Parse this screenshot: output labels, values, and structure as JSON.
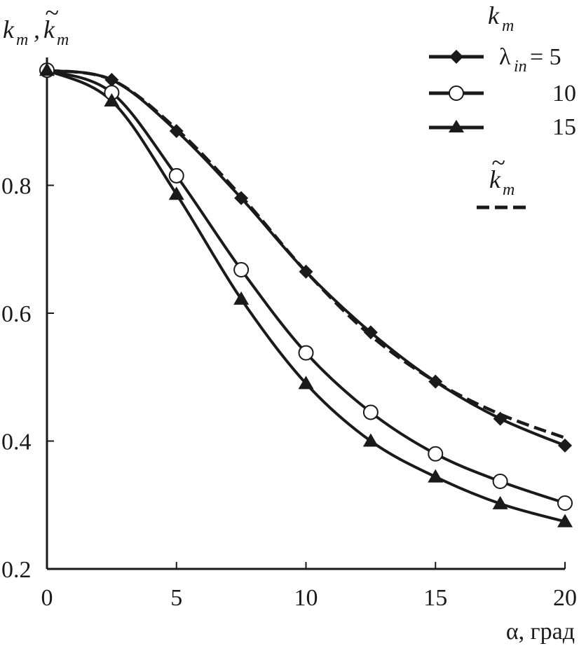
{
  "chart_data": {
    "type": "line",
    "title": "",
    "ylabel_main": "k",
    "ylabel_sub": "m",
    "ylabel_sep": ",",
    "ylabel2_main": "k",
    "ylabel2_tilde": "~",
    "ylabel2_sub": "m",
    "xlabel": "α, град",
    "xlim": [
      0,
      20
    ],
    "ylim": [
      0.2,
      1.0
    ],
    "xticks": [
      0,
      5,
      10,
      15,
      20
    ],
    "yticks": [
      0.2,
      0.4,
      0.6,
      0.8
    ],
    "ytick_labels": [
      "0.2",
      "0.4",
      "0.6",
      "0.8"
    ],
    "xtick_labels": [
      "0",
      "5",
      "10",
      "15",
      "20"
    ],
    "legend": {
      "title_main": "k",
      "title_sub": "m",
      "lambda_symbol": "λ",
      "lambda_sub": "in",
      "lambda_eq": " = 5",
      "entries": [
        "10",
        "15"
      ],
      "dashed_main": "k",
      "dashed_tilde": "~",
      "dashed_sub": "m"
    },
    "series": [
      {
        "name": "λin = 5",
        "marker": "diamond",
        "x": [
          0,
          2.5,
          5,
          7.5,
          10,
          12.5,
          15,
          17.5,
          20
        ],
        "y": [
          0.98,
          0.965,
          0.885,
          0.78,
          0.665,
          0.57,
          0.493,
          0.435,
          0.393
        ]
      },
      {
        "name": "10",
        "marker": "circle",
        "x": [
          0,
          2.5,
          5,
          7.5,
          10,
          12.5,
          15,
          17.5,
          20
        ],
        "y": [
          0.98,
          0.945,
          0.815,
          0.668,
          0.538,
          0.445,
          0.38,
          0.337,
          0.303
        ]
      },
      {
        "name": "15",
        "marker": "triangle",
        "x": [
          0,
          2.5,
          5,
          7.5,
          10,
          12.5,
          15,
          17.5,
          20
        ],
        "y": [
          0.98,
          0.932,
          0.786,
          0.622,
          0.49,
          0.4,
          0.344,
          0.302,
          0.274
        ]
      },
      {
        "name": "k̃m",
        "marker": "none",
        "dashed": true,
        "x": [
          0,
          2.5,
          5,
          7.5,
          10,
          12.5,
          15,
          17.5,
          20
        ],
        "y": [
          0.98,
          0.965,
          0.888,
          0.783,
          0.665,
          0.565,
          0.493,
          0.442,
          0.405
        ]
      }
    ]
  }
}
